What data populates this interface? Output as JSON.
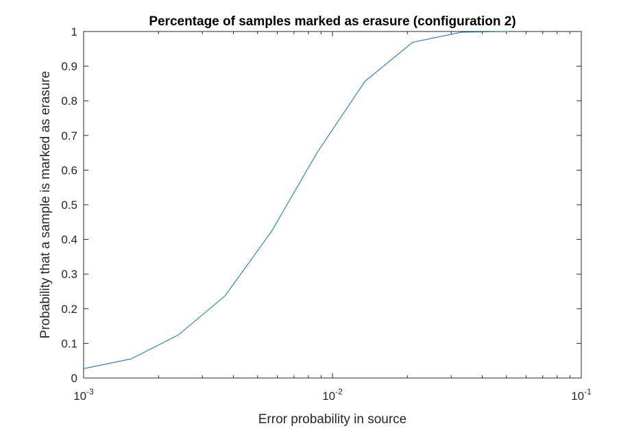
{
  "chart_data": {
    "type": "line",
    "title": "Percentage of samples marked as erasure (configuration 2)",
    "xlabel": "Error probability in source",
    "ylabel": "Probability that a sample is marked as erasure",
    "xscale": "log",
    "xlim": [
      0.001,
      0.1
    ],
    "ylim": [
      0,
      1
    ],
    "grid": false,
    "x_ticks": [
      {
        "value": 0.001,
        "base": "10",
        "exp": "-3"
      },
      {
        "value": 0.01,
        "base": "10",
        "exp": "-2"
      },
      {
        "value": 0.1,
        "base": "10",
        "exp": "-1"
      }
    ],
    "y_ticks": [
      "0",
      "0.1",
      "0.2",
      "0.3",
      "0.4",
      "0.5",
      "0.6",
      "0.7",
      "0.8",
      "0.9",
      "1"
    ],
    "series": [
      {
        "color": "#0072BD",
        "x": [
          0.001,
          0.00155,
          0.0024,
          0.0037,
          0.0057,
          0.0087,
          0.0135,
          0.021,
          0.033,
          0.051
        ],
        "y": [
          0.027,
          0.055,
          0.124,
          0.237,
          0.424,
          0.652,
          0.856,
          0.969,
          0.998,
          1.0
        ]
      }
    ]
  }
}
